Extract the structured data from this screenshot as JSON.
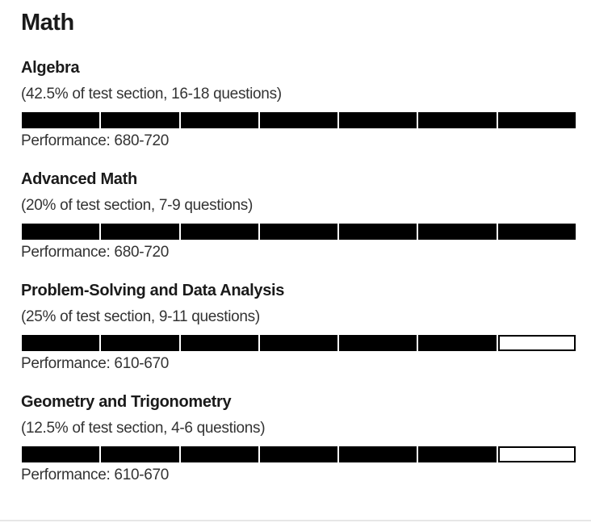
{
  "page": {
    "heading": "Math",
    "filled_color": "#000000",
    "empty_color": "#ffffff"
  },
  "sections": [
    {
      "title": "Algebra",
      "subtitle": "(42.5% of test section, 16-18 questions)",
      "performance": "Performance: 680-720",
      "segments_filled": 7,
      "segments_total": 7
    },
    {
      "title": "Advanced Math",
      "subtitle": "(20% of test section, 7-9 questions)",
      "performance": "Performance: 680-720",
      "segments_filled": 7,
      "segments_total": 7
    },
    {
      "title": "Problem-Solving and Data Analysis",
      "subtitle": "(25% of test section, 9-11 questions)",
      "performance": "Performance: 610-670",
      "segments_filled": 6,
      "segments_total": 7
    },
    {
      "title": "Geometry and Trigonometry",
      "subtitle": "(12.5% of test section, 4-6 questions)",
      "performance": "Performance: 610-670",
      "segments_filled": 6,
      "segments_total": 7
    }
  ]
}
